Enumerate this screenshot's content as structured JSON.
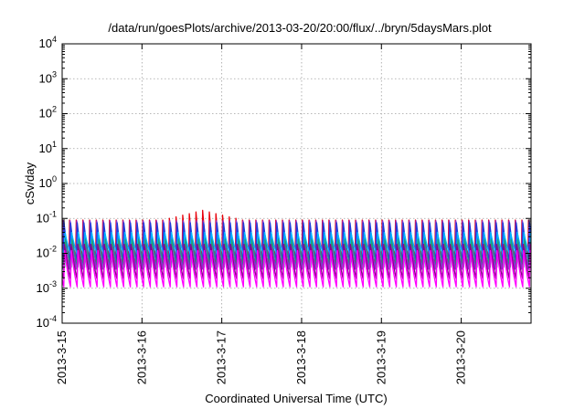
{
  "chart_data": {
    "type": "line",
    "title": "/data/run/goesPlots/archive/2013-03-20/20:00/flux/../bryn/5daysMars.plot",
    "xlabel": "Coordinated Universal Time (UTC)",
    "ylabel": "cSv/day",
    "y_scale": "log",
    "ylim": [
      0.0001,
      10000
    ],
    "y_ticks": [
      {
        "base": "10",
        "exp": "-4",
        "value": 0.0001
      },
      {
        "base": "10",
        "exp": "-3",
        "value": 0.001
      },
      {
        "base": "10",
        "exp": "-2",
        "value": 0.01
      },
      {
        "base": "10",
        "exp": "-1",
        "value": 0.1
      },
      {
        "base": "10",
        "exp": "0",
        "value": 1
      },
      {
        "base": "10",
        "exp": "1",
        "value": 10
      },
      {
        "base": "10",
        "exp": "2",
        "value": 100
      },
      {
        "base": "10",
        "exp": "3",
        "value": 1000
      },
      {
        "base": "10",
        "exp": "4",
        "value": 10000
      }
    ],
    "xlim": [
      "2013-03-15T00:00",
      "2013-03-20T21:00"
    ],
    "x_ticks": [
      {
        "label": "2013-3-15",
        "value": "2013-03-15"
      },
      {
        "label": "2013-3-16",
        "value": "2013-03-16"
      },
      {
        "label": "2013-3-17",
        "value": "2013-03-17"
      },
      {
        "label": "2013-3-18",
        "value": "2013-03-18"
      },
      {
        "label": "2013-3-19",
        "value": "2013-03-19"
      },
      {
        "label": "2013-3-20",
        "value": "2013-03-20"
      }
    ],
    "grid": true,
    "legend": false,
    "series": [
      {
        "color": "#e8000b",
        "cycle_hours": 2.0,
        "peak": 0.09,
        "trough": 0.004,
        "start_offset_hours": 0.0,
        "enhanced_peak": 0.17,
        "enhanced_window": [
          "2013-03-16T06:00",
          "2013-03-17T06:00"
        ]
      },
      {
        "color": "#8b2fd0",
        "cycle_hours": 2.0,
        "peak": 0.085,
        "trough": 0.0035,
        "start_offset_hours": 0.15
      },
      {
        "color": "#1f3bd8",
        "cycle_hours": 2.0,
        "peak": 0.075,
        "trough": 0.0055,
        "start_offset_hours": 0.3
      },
      {
        "color": "#00b4ff",
        "cycle_hours": 2.0,
        "peak": 0.04,
        "trough": 0.009,
        "start_offset_hours": 0.6
      },
      {
        "color": "#21a07c",
        "cycle_hours": 2.0,
        "peak": 0.025,
        "trough": 0.004,
        "start_offset_hours": 0.75
      },
      {
        "color": "#8b008b",
        "cycle_hours": 2.0,
        "peak": 0.018,
        "trough": 0.0019,
        "start_offset_hours": 0.45
      },
      {
        "color": "#ff00ff",
        "cycle_hours": 2.0,
        "peak": 0.012,
        "trough": 0.0011,
        "start_offset_hours": 0.5
      }
    ]
  }
}
